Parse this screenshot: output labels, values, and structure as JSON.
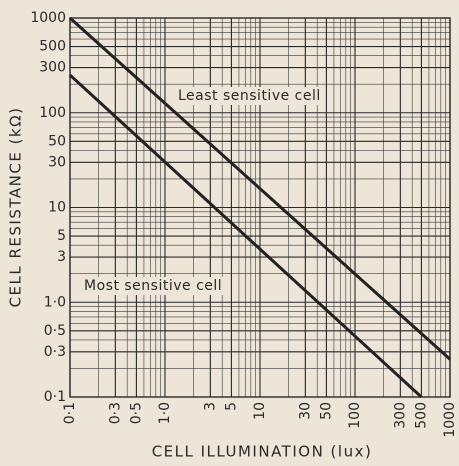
{
  "chart_data": {
    "type": "line",
    "y_label": "CELL RESISTANCE (kΩ)",
    "x_label": "CELL ILLUMINATION (lux)",
    "log_x": true,
    "log_y": true,
    "grid": true,
    "xlim": [
      0.1,
      1000
    ],
    "ylim": [
      0.1,
      1000
    ],
    "xticks": [
      {
        "value": 0.1,
        "label": "0·1"
      },
      {
        "value": 0.3,
        "label": "0·3"
      },
      {
        "value": 0.5,
        "label": "0·5"
      },
      {
        "value": 1,
        "label": "1·0"
      },
      3,
      5,
      10,
      30,
      50,
      100,
      300,
      500,
      1000
    ],
    "yticks": [
      {
        "value": 0.1,
        "label": "0·1"
      },
      {
        "value": 0.3,
        "label": "0·3"
      },
      {
        "value": 0.5,
        "label": "0·5"
      },
      {
        "value": 1,
        "label": "1·0"
      },
      3,
      5,
      10,
      30,
      50,
      100,
      300,
      500,
      1000
    ],
    "series": [
      {
        "name": "Least sensitive cell",
        "color": "#222222",
        "x": [
          0.1,
          1000
        ],
        "values": [
          1000,
          0.25
        ]
      },
      {
        "name": "Most sensitive cell",
        "color": "#222222",
        "x": [
          0.1,
          500
        ],
        "values": [
          250,
          0.1
        ]
      }
    ]
  }
}
